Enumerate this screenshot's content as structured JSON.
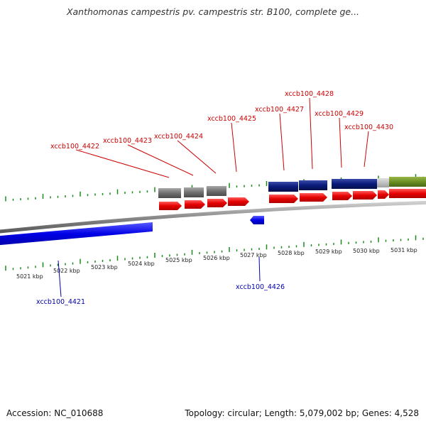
{
  "title": "Xanthomonas campestris pv. campestris str. B100, complete ge...",
  "colors": {
    "forward_gene": "#e60000",
    "reverse_gene": "#0000e6",
    "forward_label": "#cc0000",
    "reverse_label": "#0000aa",
    "cds_dark": "#0a1a7a",
    "cds_gray": "#707070",
    "cds_green": "#6b8e23",
    "tick": "#1a8a1a",
    "backbone": "#888888"
  },
  "scale_labels": [
    "5021 kbp",
    "5022 kbp",
    "5023 kbp",
    "5024 kbp",
    "5025 kbp",
    "5026 kbp",
    "5027 kbp",
    "5028 kbp",
    "5029 kbp",
    "5030 kbp",
    "5031 kbp"
  ],
  "genes_forward": [
    "xccb100_4422",
    "xccb100_4423",
    "xccb100_4424",
    "xccb100_4425",
    "xccb100_4427",
    "xccb100_4428",
    "xccb100_4429",
    "xccb100_4430"
  ],
  "genes_reverse": [
    "xccb100_4421",
    "xccb100_4426"
  ],
  "footer": {
    "accession": "Accession: NC_010688",
    "summary": "Topology: circular; Length: 5,079,002 bp; Genes: 4,528"
  }
}
